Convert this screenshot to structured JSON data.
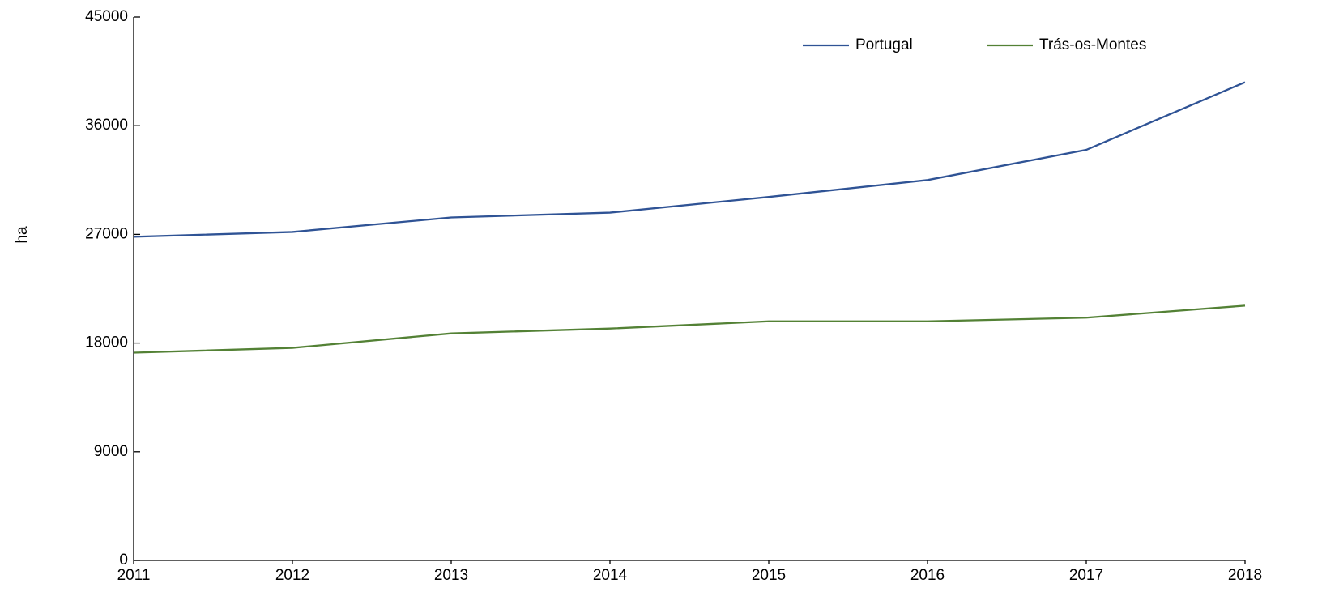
{
  "chart_data": {
    "type": "line",
    "y_label": "ha",
    "categories": [
      "2011",
      "2012",
      "2013",
      "2014",
      "2015",
      "2016",
      "2017",
      "2018"
    ],
    "series": [
      {
        "name": "Portugal",
        "color": "#2f5395",
        "values": [
          26800,
          27200,
          28400,
          28800,
          30100,
          31500,
          34000,
          39600
        ]
      },
      {
        "name": "Trás-os-Montes",
        "color": "#538135",
        "values": [
          17200,
          17600,
          18800,
          19200,
          19800,
          19800,
          20100,
          21100
        ]
      }
    ],
    "ylim": [
      0,
      45000
    ],
    "yticks": [
      0,
      9000,
      18000,
      27000,
      36000,
      45000
    ],
    "grid": false,
    "legend": "top"
  }
}
